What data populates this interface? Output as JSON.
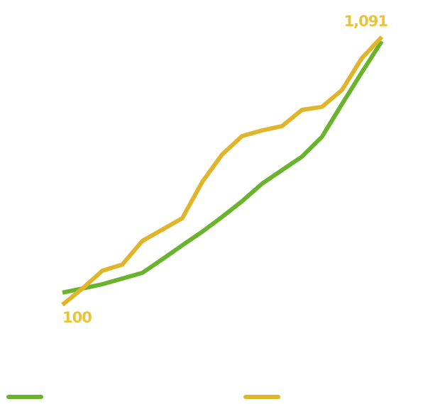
{
  "chart_data": {
    "type": "line",
    "categories": [
      null,
      null,
      null,
      null,
      null,
      null,
      null,
      null,
      null,
      null,
      null,
      null,
      null,
      null,
      null,
      null,
      null
    ],
    "series": [
      {
        "color": "#6ab42d",
        "values": [
          145,
          160,
          176,
          197,
          218,
          268,
          320,
          370,
          425,
          483,
          548,
          598,
          648,
          721,
          842,
          960,
          1075
        ]
      },
      {
        "color": "#e0b52c",
        "values": [
          100,
          160,
          226,
          249,
          336,
          378,
          420,
          554,
          656,
          724,
          745,
          761,
          821,
          832,
          894,
          1012,
          1091
        ],
        "value_labels": [
          "100",
          null,
          null,
          null,
          null,
          null,
          null,
          null,
          null,
          null,
          null,
          null,
          null,
          null,
          null,
          null,
          "1,091"
        ]
      }
    ]
  }
}
